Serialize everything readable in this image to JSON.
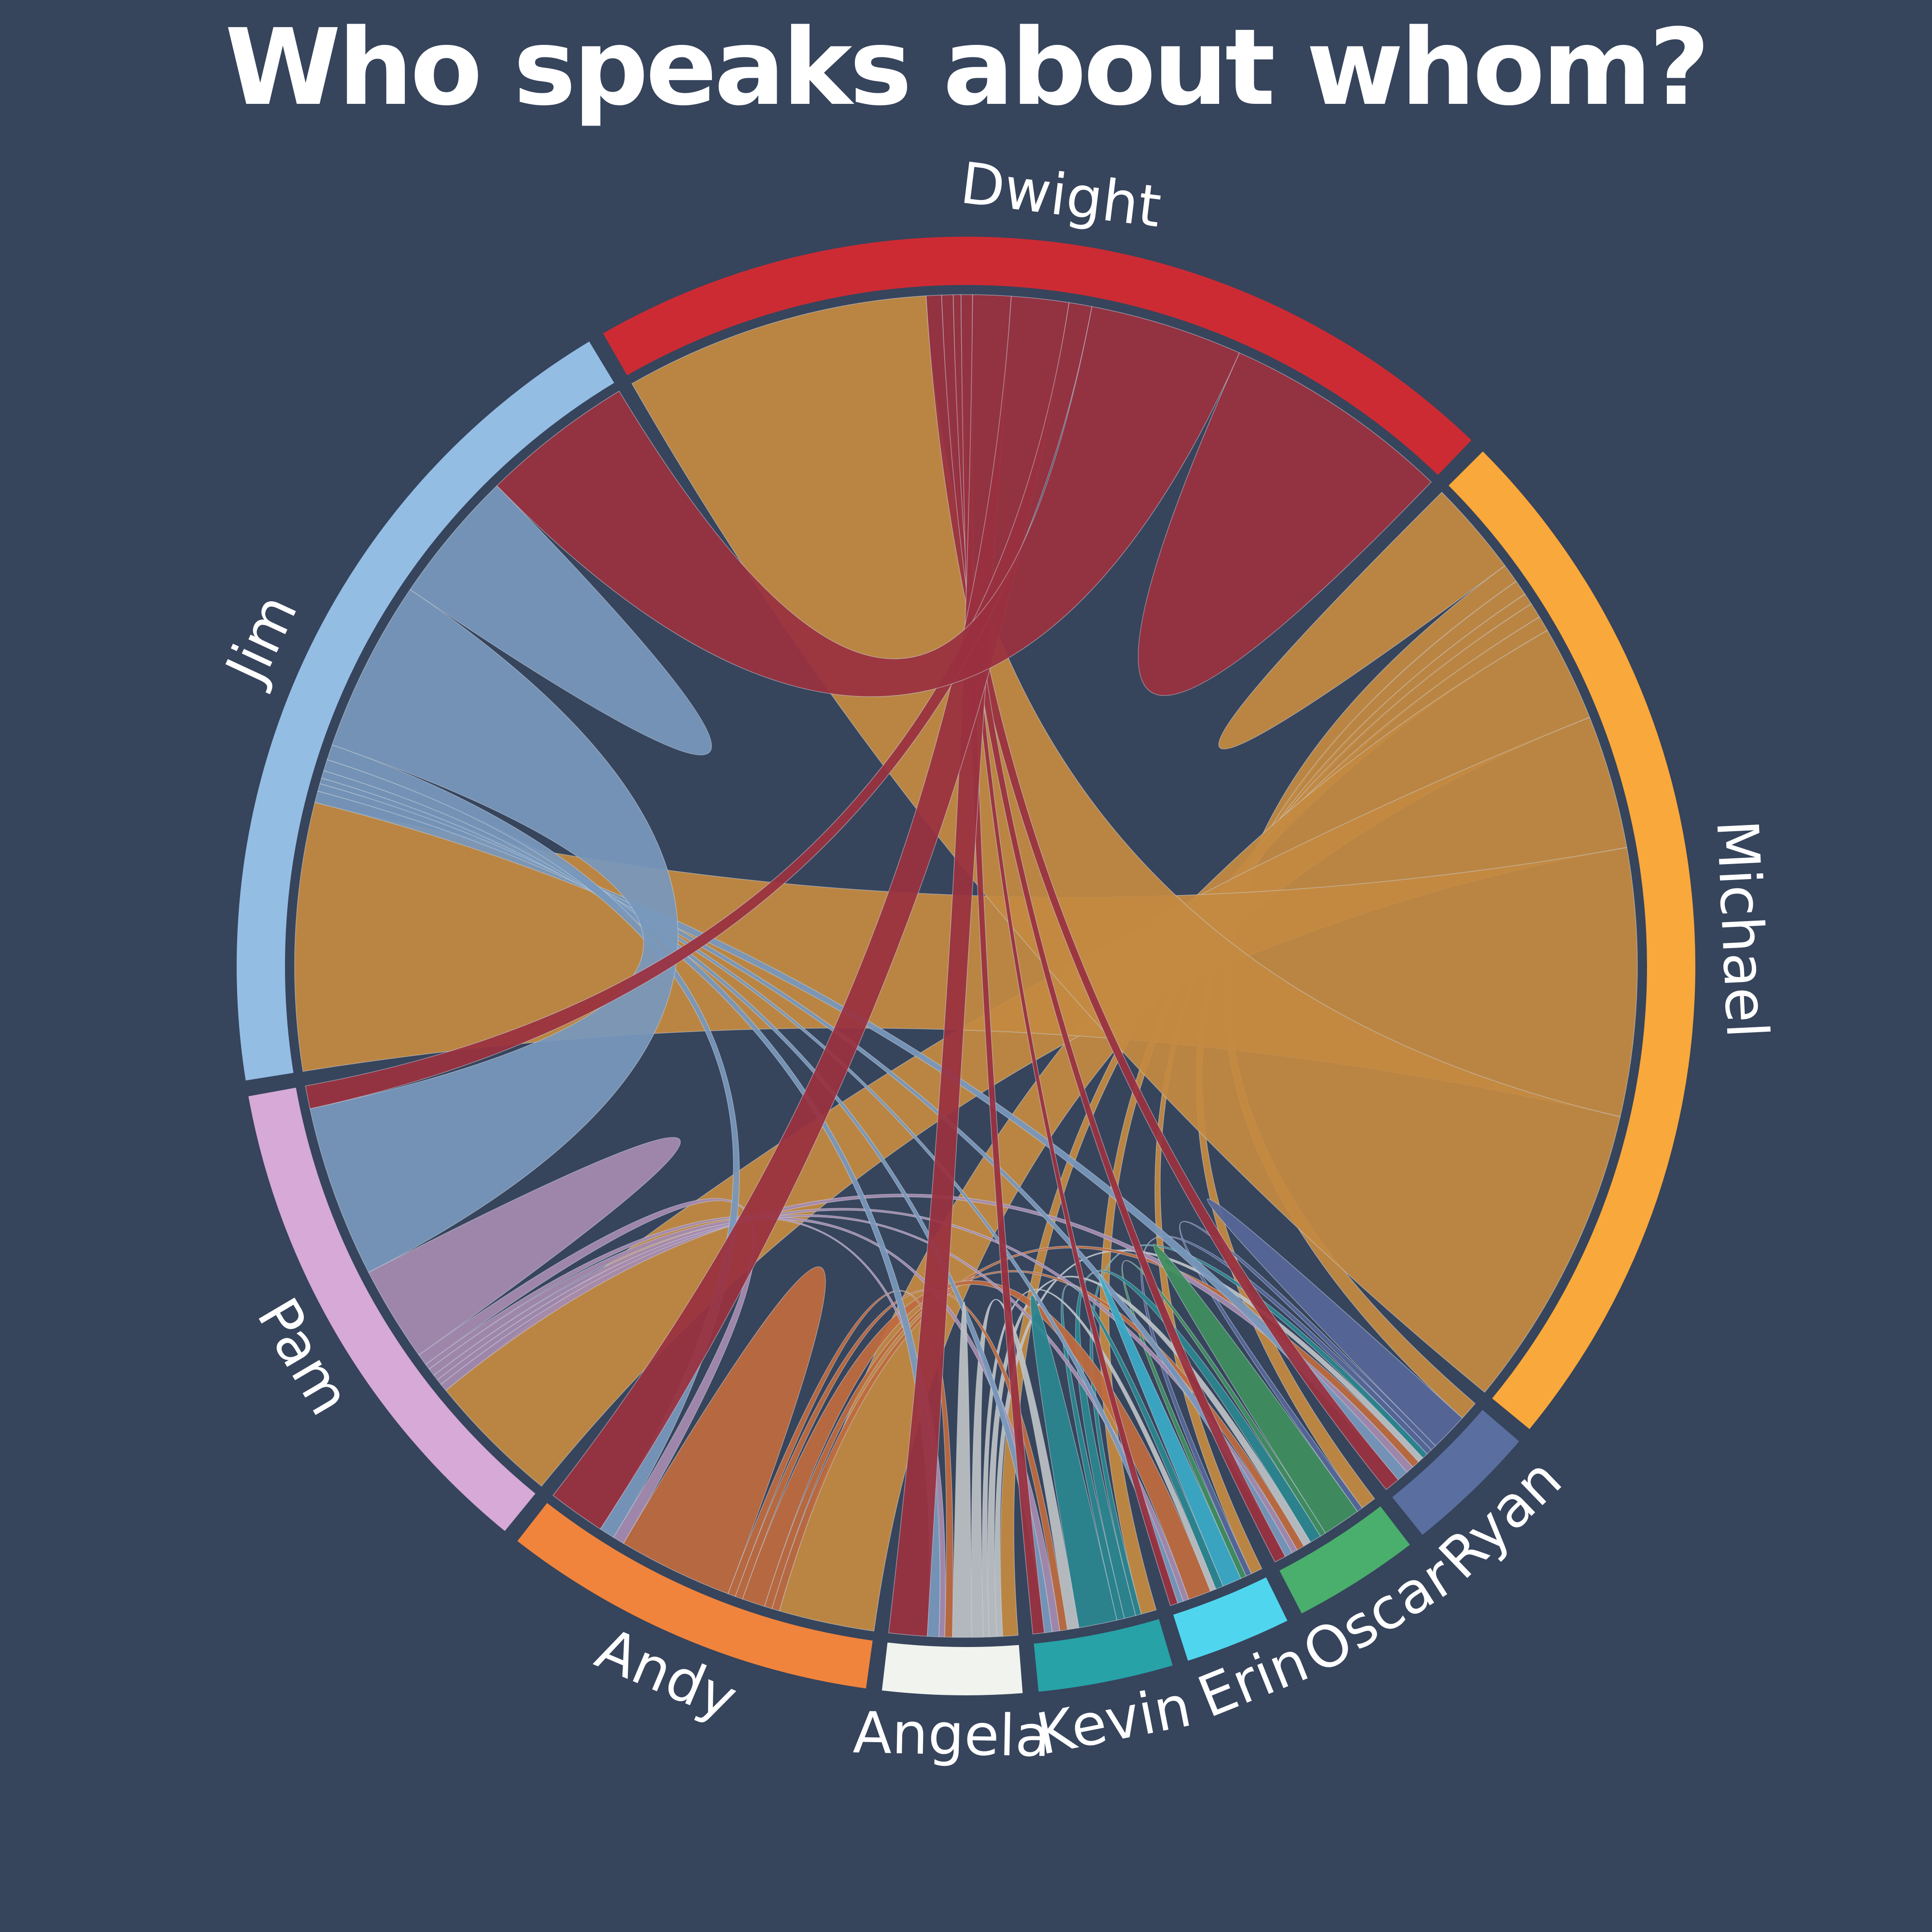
{
  "chart_data": {
    "type": "chord",
    "title": "Who speaks about whom?",
    "groups": [
      {
        "name": "Michael",
        "color": "#f9a83b",
        "ribbon_color": "#c48a42"
      },
      {
        "name": "Ryan",
        "color": "#5a6fa0",
        "ribbon_color": "#55669a"
      },
      {
        "name": "Oscar",
        "color": "#4aae6c",
        "ribbon_color": "#3f8e60"
      },
      {
        "name": "Erin",
        "color": "#4fd6ee",
        "ribbon_color": "#3aaac8"
      },
      {
        "name": "Kevin",
        "color": "#27a2a6",
        "ribbon_color": "#2a8590"
      },
      {
        "name": "Angela",
        "color": "#f1f3ee",
        "ribbon_color": "#bcc1c4"
      },
      {
        "name": "Andy",
        "color": "#f0843c",
        "ribbon_color": "#c06a3e"
      },
      {
        "name": "Pam",
        "color": "#d6a9d6",
        "ribbon_color": "#a68bb0"
      },
      {
        "name": "Jim",
        "color": "#94bde4",
        "ribbon_color": "#7798bc"
      },
      {
        "name": "Dwight",
        "color": "#cd2b34",
        "ribbon_color": "#9a3040"
      }
    ],
    "matrix": [
      [
        5,
        1,
        0.8,
        0.6,
        0.8,
        0.8,
        5,
        7,
        14,
        16
      ],
      [
        1,
        2,
        0.3,
        0.3,
        0.3,
        0.3,
        0.4,
        0.4,
        0.6,
        0.8
      ],
      [
        0.8,
        0.3,
        2,
        0.3,
        0.6,
        0.4,
        0.4,
        0.3,
        0.4,
        0.6
      ],
      [
        0.6,
        0.3,
        0.3,
        1,
        0.4,
        0.3,
        1.2,
        0.3,
        0.3,
        0.4
      ],
      [
        0.8,
        0.3,
        0.6,
        0.4,
        2,
        0.6,
        0.4,
        0.4,
        0.4,
        0.6
      ],
      [
        0.8,
        0.3,
        0.4,
        0.3,
        0.6,
        1,
        0.4,
        0.3,
        0.6,
        2
      ],
      [
        5,
        0.4,
        0.4,
        1.2,
        0.4,
        0.4,
        6,
        0.6,
        0.8,
        3
      ],
      [
        7,
        0.4,
        0.3,
        0.3,
        0.4,
        0.3,
        0.6,
        5,
        9,
        1.2
      ],
      [
        14,
        0.6,
        0.4,
        0.3,
        0.4,
        0.6,
        0.8,
        9,
        7,
        8
      ],
      [
        16,
        0.8,
        0.6,
        0.4,
        0.6,
        2,
        3,
        1.2,
        8,
        12
      ]
    ]
  }
}
